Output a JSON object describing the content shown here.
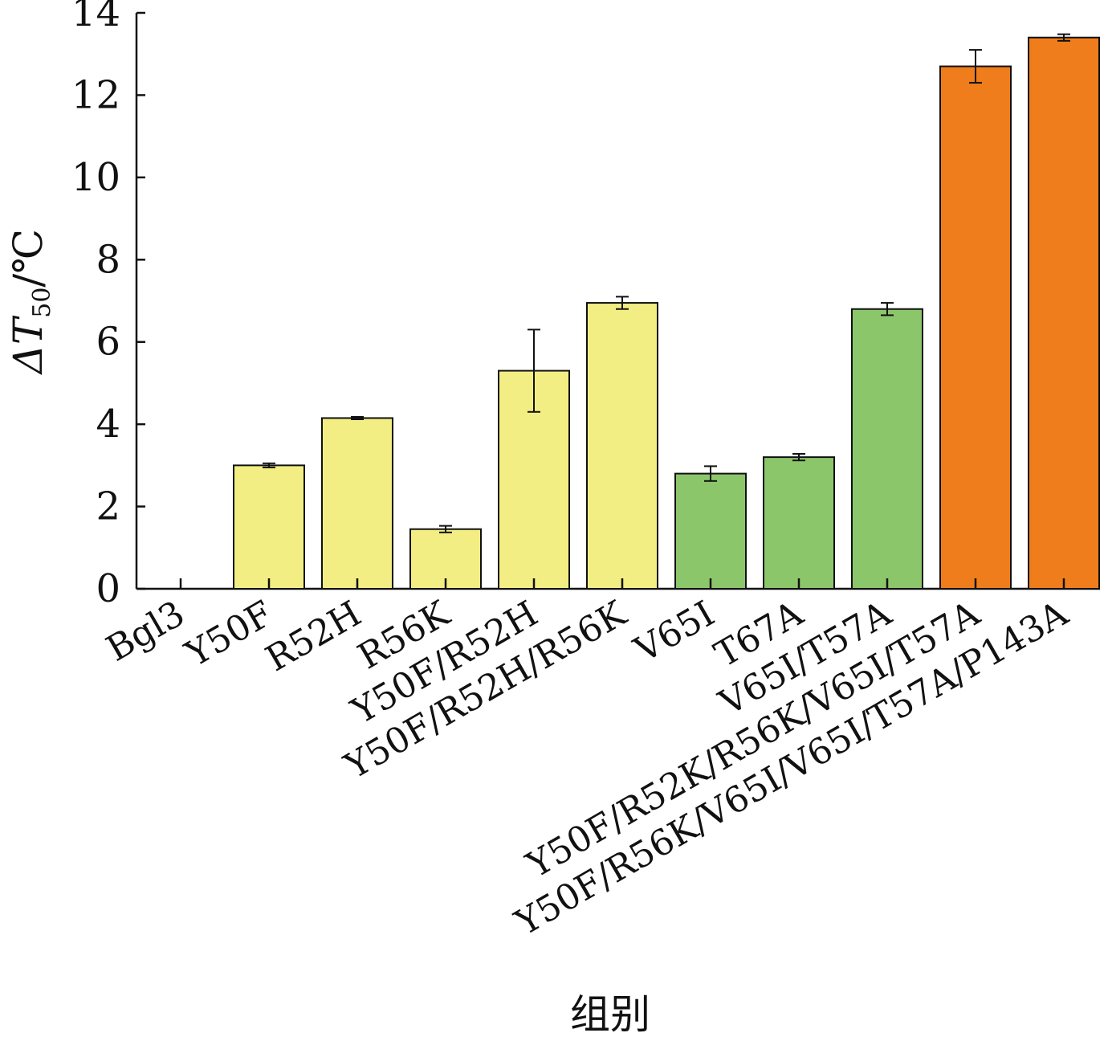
{
  "chart_data": {
    "type": "bar",
    "categories": [
      "Bgl3",
      "Y50F",
      "R52H",
      "R56K",
      "Y50F/R52H",
      "Y50F/R52H/R56K",
      "V65I",
      "T67A",
      "V65I/T57A",
      "Y50F/R52K/R56K/V65I/T57A",
      "Y50F/R56K/V65I/V65I/T57A/P143A"
    ],
    "values": [
      0,
      3.0,
      4.15,
      1.45,
      5.3,
      6.95,
      2.8,
      3.2,
      6.8,
      12.7,
      13.4
    ],
    "errors": [
      0,
      0.05,
      0.03,
      0.08,
      1.0,
      0.15,
      0.18,
      0.08,
      0.15,
      0.4,
      0.08
    ],
    "colors": [
      "#f3ee83",
      "#f3ee83",
      "#f3ee83",
      "#f3ee83",
      "#f3ee83",
      "#f3ee83",
      "#8cc66b",
      "#8cc66b",
      "#8cc66b",
      "#ef7d1c",
      "#ef7d1c"
    ],
    "ylabel_prefix": "ΔT",
    "ylabel_sub": "50",
    "ylabel_suffix": "/℃",
    "xlabel": "组别",
    "ylim": [
      0,
      14
    ],
    "yticks": [
      0,
      2,
      4,
      6,
      8,
      10,
      12,
      14
    ],
    "grid": false
  }
}
